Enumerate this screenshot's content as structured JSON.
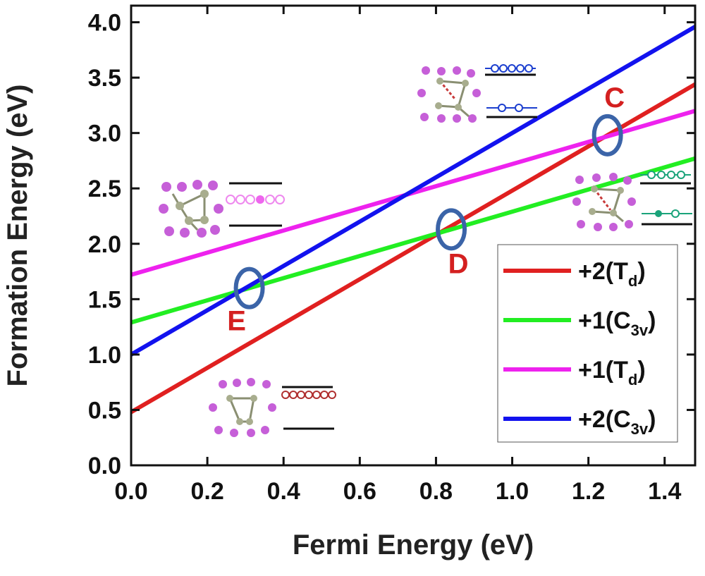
{
  "chart_data": {
    "type": "line",
    "xlabel": "Fermi Energy (eV)",
    "ylabel": "Formation Energy (eV)",
    "xlim": [
      0,
      1.48
    ],
    "ylim": [
      0,
      4.15
    ],
    "x_ticks": [
      "0.0",
      "0.2",
      "0.4",
      "0.6",
      "0.8",
      "1.0",
      "1.2",
      "1.4"
    ],
    "y_ticks": [
      "0.0",
      "0.5",
      "1.0",
      "1.5",
      "2.0",
      "2.5",
      "3.0",
      "3.5",
      "4.0"
    ],
    "series": [
      {
        "name": "+2(T",
        "sub": "d",
        "suffix": ")",
        "color": "#e02020",
        "x": [
          0,
          1.48
        ],
        "y": [
          0.48,
          3.44
        ]
      },
      {
        "name": "+1(C",
        "sub": "3v",
        "suffix": ")",
        "color": "#22ee22",
        "x": [
          0,
          1.48
        ],
        "y": [
          1.29,
          2.77
        ]
      },
      {
        "name": "+1(T",
        "sub": "d",
        "suffix": ")",
        "color": "#ee22ee",
        "x": [
          0,
          1.48
        ],
        "y": [
          1.72,
          3.2
        ]
      },
      {
        "name": "+2(C",
        "sub": "3v",
        "suffix": ")",
        "color": "#1212ee",
        "x": [
          0,
          1.48
        ],
        "y": [
          1.0,
          3.96
        ]
      }
    ],
    "legend_position": "bottom-right",
    "markers": [
      {
        "label": "C",
        "x": 1.25,
        "y": 2.98,
        "color": "#3b64a8"
      },
      {
        "label": "D",
        "x": 0.84,
        "y": 2.13,
        "color": "#3b64a8"
      },
      {
        "label": "E",
        "x": 0.31,
        "y": 1.6,
        "color": "#3b64a8"
      }
    ]
  }
}
